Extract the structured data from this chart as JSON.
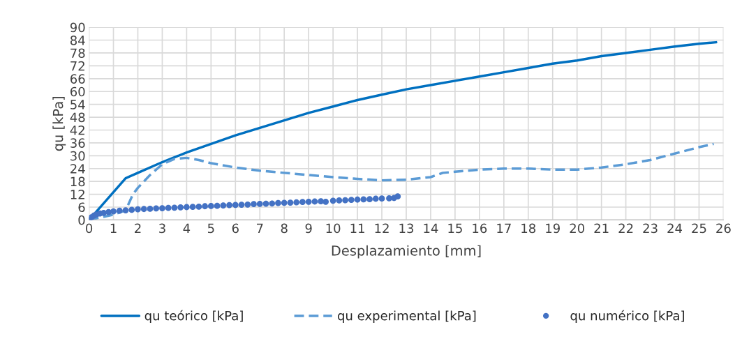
{
  "chart_data": {
    "type": "line",
    "xlabel": "Desplazamiento [mm]",
    "ylabel": "qu [kPa]",
    "xlim": [
      0,
      26
    ],
    "xticks": [
      0,
      1,
      2,
      3,
      4,
      5,
      6,
      7,
      8,
      9,
      10,
      11,
      12,
      13,
      14,
      15,
      16,
      17,
      18,
      19,
      20,
      21,
      22,
      23,
      24,
      25,
      26
    ],
    "ylim": [
      0,
      90
    ],
    "yticks": [
      0,
      6,
      12,
      18,
      24,
      30,
      36,
      42,
      48,
      54,
      60,
      66,
      72,
      78,
      84,
      90
    ],
    "grid": true,
    "legend": "bottom",
    "series": [
      {
        "name": "qu teórico [kPa]",
        "color": "#0070c0",
        "line_style": "solid",
        "x": [
          0,
          1.5,
          2,
          3,
          4,
          5,
          6,
          7,
          8,
          9,
          10,
          11,
          12,
          13,
          14,
          15,
          16,
          17,
          18,
          19,
          20,
          21,
          22,
          23,
          24,
          25,
          25.7
        ],
        "values": [
          0,
          19.5,
          22,
          27,
          31.5,
          35.5,
          39.5,
          43,
          46.5,
          50,
          53,
          56,
          58.5,
          61,
          63,
          65,
          67,
          69,
          71,
          73,
          74.5,
          76.5,
          78,
          79.5,
          81,
          82.3,
          83
        ]
      },
      {
        "name": "qu experimental [kPa]",
        "color": "#5b9bd5",
        "line_style": "dashed",
        "x": [
          0,
          1,
          1.5,
          1.6,
          1.8,
          2,
          2.5,
          3,
          3.5,
          4,
          4.5,
          5,
          6,
          7,
          8,
          9,
          10,
          11,
          12,
          13,
          14,
          14.5,
          15,
          16,
          17,
          18,
          19,
          20,
          21,
          22,
          23,
          24,
          25,
          25.6
        ],
        "values": [
          0,
          2.5,
          4.5,
          7,
          12,
          15,
          21,
          26,
          28.5,
          29,
          28,
          26.5,
          24.5,
          23,
          22,
          21,
          20,
          19.2,
          18.5,
          18.8,
          20,
          22,
          22.5,
          23.5,
          24,
          24,
          23.5,
          23.5,
          24.5,
          26,
          28,
          31,
          34,
          35.5
        ]
      },
      {
        "name": "qu numérico [kPa]",
        "color": "#4472c4",
        "type": "scatter",
        "marker": "circle",
        "x": [
          0,
          0.1,
          0.2,
          0.3,
          0.45,
          0.6,
          0.8,
          1,
          1.25,
          1.5,
          1.75,
          2,
          2.25,
          2.5,
          2.75,
          3,
          3.25,
          3.5,
          3.75,
          4,
          4.25,
          4.5,
          4.75,
          5,
          5.25,
          5.5,
          5.75,
          6,
          6.25,
          6.5,
          6.75,
          7,
          7.25,
          7.5,
          7.75,
          8,
          8.25,
          8.5,
          8.75,
          9,
          9.25,
          9.5,
          9.7,
          10,
          10.25,
          10.5,
          10.75,
          11,
          11.25,
          11.5,
          11.75,
          12,
          12.3,
          12.5,
          12.65
        ],
        "values": [
          0,
          1.2,
          2,
          2.5,
          3,
          3.3,
          3.7,
          4,
          4.3,
          4.5,
          4.7,
          5,
          5.1,
          5.2,
          5.4,
          5.5,
          5.6,
          5.7,
          5.9,
          6,
          6.1,
          6.2,
          6.4,
          6.5,
          6.6,
          6.8,
          6.9,
          7,
          7.1,
          7.2,
          7.4,
          7.5,
          7.6,
          7.7,
          7.9,
          8,
          8.1,
          8.2,
          8.4,
          8.5,
          8.6,
          8.7,
          8.5,
          9,
          9.1,
          9.2,
          9.4,
          9.5,
          9.6,
          9.7,
          9.9,
          10,
          10.1,
          10.3,
          11
        ]
      }
    ]
  }
}
